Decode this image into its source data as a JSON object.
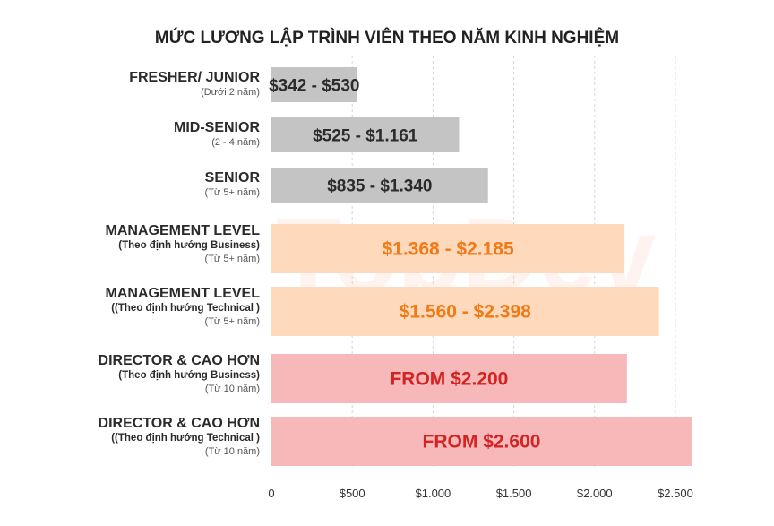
{
  "chart_data": {
    "type": "bar",
    "orientation": "horizontal",
    "title": "MỨC LƯƠNG LẬP TRÌNH VIÊN THEO NĂM KINH NGHIỆM",
    "xlim": [
      0,
      2600
    ],
    "grid": true,
    "watermark": "TopDev",
    "x_ticks": [
      {
        "value": 0,
        "label": "0"
      },
      {
        "value": 500,
        "label": "$500"
      },
      {
        "value": 1000,
        "label": "$1.000"
      },
      {
        "value": 1500,
        "label": "$1.500"
      },
      {
        "value": 2000,
        "label": "$2.000"
      },
      {
        "value": 2500,
        "label": "$2.500"
      }
    ],
    "categories": [
      {
        "label": "FRESHER/ JUNIOR",
        "sublabel": "",
        "note": "(Dưới 2 năm)",
        "value": 530,
        "range": [
          342,
          530
        ],
        "value_label": "$342 - $530",
        "bar_color": "#c4c4c4",
        "text_color": "#2b2b2b"
      },
      {
        "label": "MID-SENIOR",
        "sublabel": "",
        "note": "(2 - 4 năm)",
        "value": 1161,
        "range": [
          525,
          1161
        ],
        "value_label": "$525 - $1.161",
        "bar_color": "#c4c4c4",
        "text_color": "#2b2b2b"
      },
      {
        "label": "SENIOR",
        "sublabel": "",
        "note": "(Từ 5+ năm)",
        "value": 1340,
        "range": [
          835,
          1340
        ],
        "value_label": "$835 - $1.340",
        "bar_color": "#c4c4c4",
        "text_color": "#2b2b2b"
      },
      {
        "label": "MANAGEMENT LEVEL",
        "sublabel": "(Theo định hướng Business)",
        "note": "(Từ 5+ năm)",
        "value": 2185,
        "range": [
          1368,
          2185
        ],
        "value_label": "$1.368 - $2.185",
        "bar_color": "#ffd9bc",
        "text_color": "#f07a16"
      },
      {
        "label": "MANAGEMENT LEVEL",
        "sublabel": "((Theo định hướng Technical )",
        "note": "(Từ 5+ năm)",
        "value": 2398,
        "range": [
          1560,
          2398
        ],
        "value_label": "$1.560 - $2.398",
        "bar_color": "#ffd9bc",
        "text_color": "#f07a16"
      },
      {
        "label": "DIRECTOR & CAO HƠN",
        "sublabel": "(Theo định hướng Business)",
        "note": "(Từ 10 năm)",
        "value": 2200,
        "range": [
          2200,
          2200
        ],
        "value_label": "FROM $2.200",
        "bar_color": "#f6b8b8",
        "text_color": "#d42323"
      },
      {
        "label": "DIRECTOR & CAO HƠN",
        "sublabel": "((Theo định hướng Technical )",
        "note": "(Từ 10 năm)",
        "value": 2600,
        "range": [
          2600,
          2600
        ],
        "value_label": "FROM $2.600",
        "bar_color": "#f6b8b8",
        "text_color": "#d42323"
      }
    ]
  }
}
